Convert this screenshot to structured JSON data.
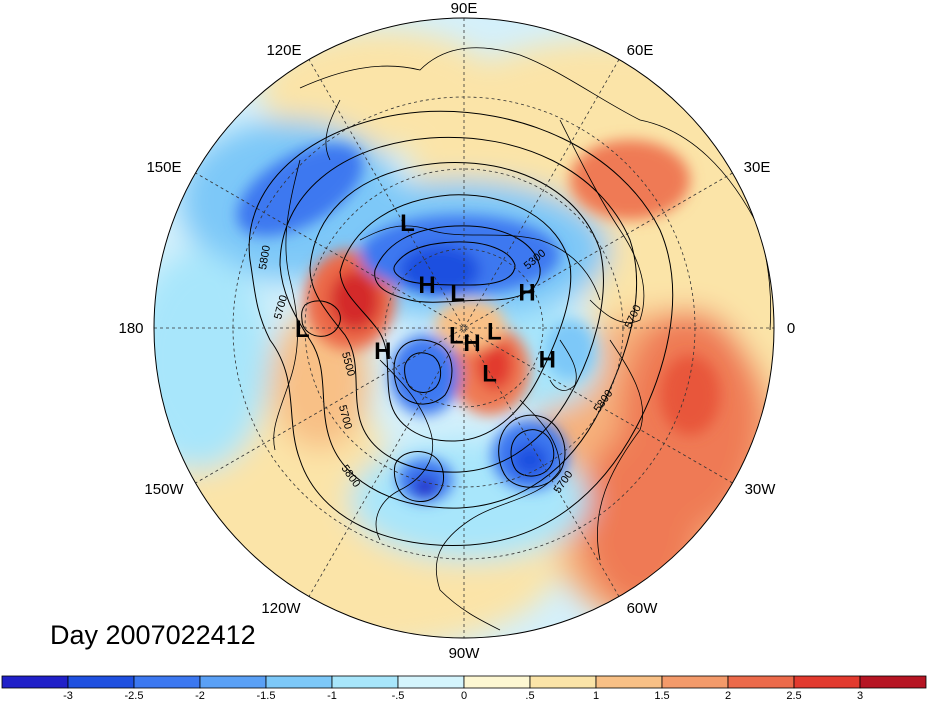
{
  "title": "Day 2007022412",
  "projection": "north polar stereographic",
  "longitude_labels": [
    "90E",
    "60E",
    "30E",
    "0",
    "30W",
    "60W",
    "90W",
    "120W",
    "150W",
    "180",
    "150E",
    "120E"
  ],
  "pressure_systems": [
    {
      "type": "H",
      "label": "H",
      "lat": 62,
      "lon": 130
    },
    {
      "type": "L",
      "label": "L",
      "lat": 35,
      "lon": 118
    },
    {
      "type": "H",
      "label": "H",
      "lat": 55,
      "lon": 30
    },
    {
      "type": "L",
      "label": "L",
      "lat": 72,
      "lon": 100
    },
    {
      "type": "H",
      "label": "H",
      "lat": 50,
      "lon": -165
    },
    {
      "type": "L",
      "label": "L",
      "lat": 20,
      "lon": 180
    },
    {
      "type": "L",
      "label": "L",
      "lat": 85,
      "lon": -140
    },
    {
      "type": "H",
      "label": "H",
      "lat": 82,
      "lon": -60
    },
    {
      "type": "L",
      "label": "L",
      "lat": 75,
      "lon": -5
    },
    {
      "type": "L",
      "label": "L",
      "lat": 65,
      "lon": -60
    },
    {
      "type": "H",
      "label": "H",
      "lat": 48,
      "lon": -20
    }
  ],
  "contour_labels": [
    "5800",
    "5700",
    "5500",
    "5700",
    "5800",
    "5300",
    "5700",
    "5800",
    "5700"
  ],
  "colorbar": {
    "ticks": [
      "-3",
      "-2.5",
      "-2",
      "-1.5",
      "-1",
      "-.5",
      "0",
      ".5",
      "1",
      "1.5",
      "2",
      "2.5",
      "3"
    ],
    "colors": [
      "#2020c8",
      "#1f50e0",
      "#3c78f0",
      "#5aa0f5",
      "#7dc8f8",
      "#a8e6fb",
      "#d4f4fc",
      "#fdf7d2",
      "#fbe4a8",
      "#f8c086",
      "#f39a6a",
      "#ec6a4a",
      "#e23a2e",
      "#b61523"
    ]
  }
}
